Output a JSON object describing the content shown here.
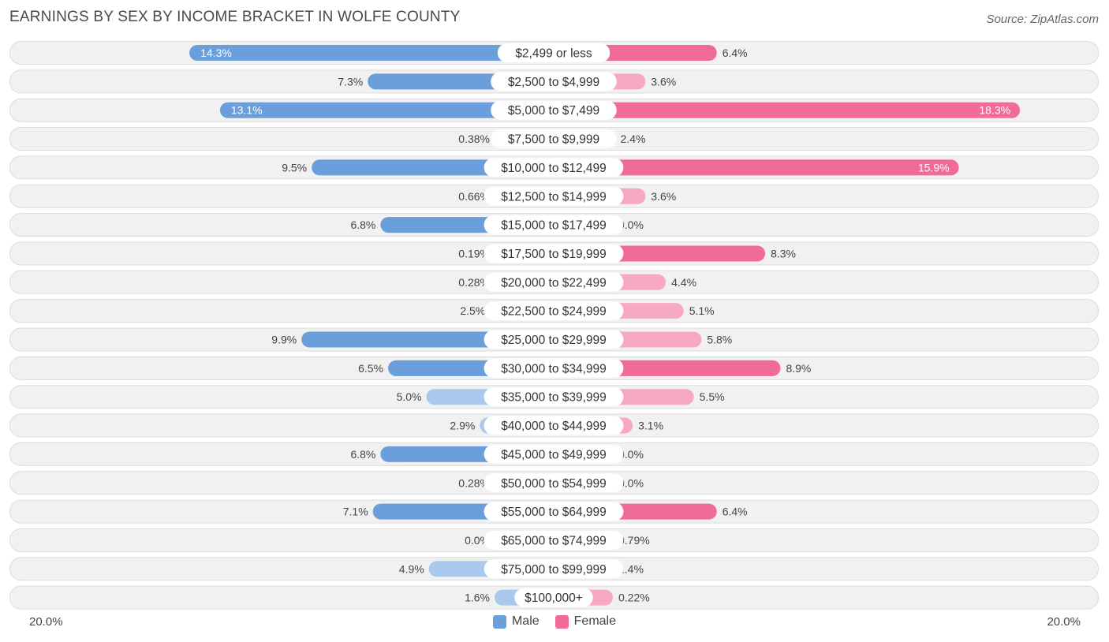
{
  "title": "EARNINGS BY SEX BY INCOME BRACKET IN WOLFE COUNTY",
  "source": "Source: ZipAtlas.com",
  "axis": {
    "left_label": "20.0%",
    "right_label": "20.0%"
  },
  "legend": {
    "male_label": "Male",
    "female_label": "Female"
  },
  "colors": {
    "male_strong": "#6a9fdc",
    "male_light": "#a8c8ec",
    "female_strong": "#f06b97",
    "female_light": "#f7a9c2",
    "row_bg": "#f1f1f1",
    "row_border": "#dcdcdc"
  },
  "chart_data": {
    "type": "bar",
    "orientation": "diverging-horizontal",
    "title": "EARNINGS BY SEX BY INCOME BRACKET IN WOLFE COUNTY",
    "xlim": [
      -20,
      20
    ],
    "categories": [
      "$2,499 or less",
      "$2,500 to $4,999",
      "$5,000 to $7,499",
      "$7,500 to $9,999",
      "$10,000 to $12,499",
      "$12,500 to $14,999",
      "$15,000 to $17,499",
      "$17,500 to $19,999",
      "$20,000 to $22,499",
      "$22,500 to $24,999",
      "$25,000 to $29,999",
      "$30,000 to $34,999",
      "$35,000 to $39,999",
      "$40,000 to $44,999",
      "$45,000 to $49,999",
      "$50,000 to $54,999",
      "$55,000 to $64,999",
      "$65,000 to $74,999",
      "$75,000 to $99,999",
      "$100,000+"
    ],
    "series": [
      {
        "name": "Male",
        "values": [
          14.3,
          7.3,
          13.1,
          0.38,
          9.5,
          0.66,
          6.8,
          0.19,
          0.28,
          2.5,
          9.9,
          6.5,
          5.0,
          2.9,
          6.8,
          0.28,
          7.1,
          0.0,
          4.9,
          1.6
        ],
        "labels": [
          "14.3%",
          "7.3%",
          "13.1%",
          "0.38%",
          "9.5%",
          "0.66%",
          "6.8%",
          "0.19%",
          "0.28%",
          "2.5%",
          "9.9%",
          "6.5%",
          "5.0%",
          "2.9%",
          "6.8%",
          "0.28%",
          "7.1%",
          "0.0%",
          "4.9%",
          "1.6%"
        ]
      },
      {
        "name": "Female",
        "values": [
          6.4,
          3.6,
          18.3,
          2.4,
          15.9,
          3.6,
          0.0,
          8.3,
          4.4,
          5.1,
          5.8,
          8.9,
          5.5,
          3.1,
          0.0,
          0.0,
          6.4,
          0.79,
          1.4,
          0.22
        ],
        "labels": [
          "6.4%",
          "3.6%",
          "18.3%",
          "2.4%",
          "15.9%",
          "3.6%",
          "0.0%",
          "8.3%",
          "4.4%",
          "5.1%",
          "5.8%",
          "8.9%",
          "5.5%",
          "3.1%",
          "0.0%",
          "0.0%",
          "6.4%",
          "0.79%",
          "1.4%",
          "0.22%"
        ]
      }
    ]
  }
}
